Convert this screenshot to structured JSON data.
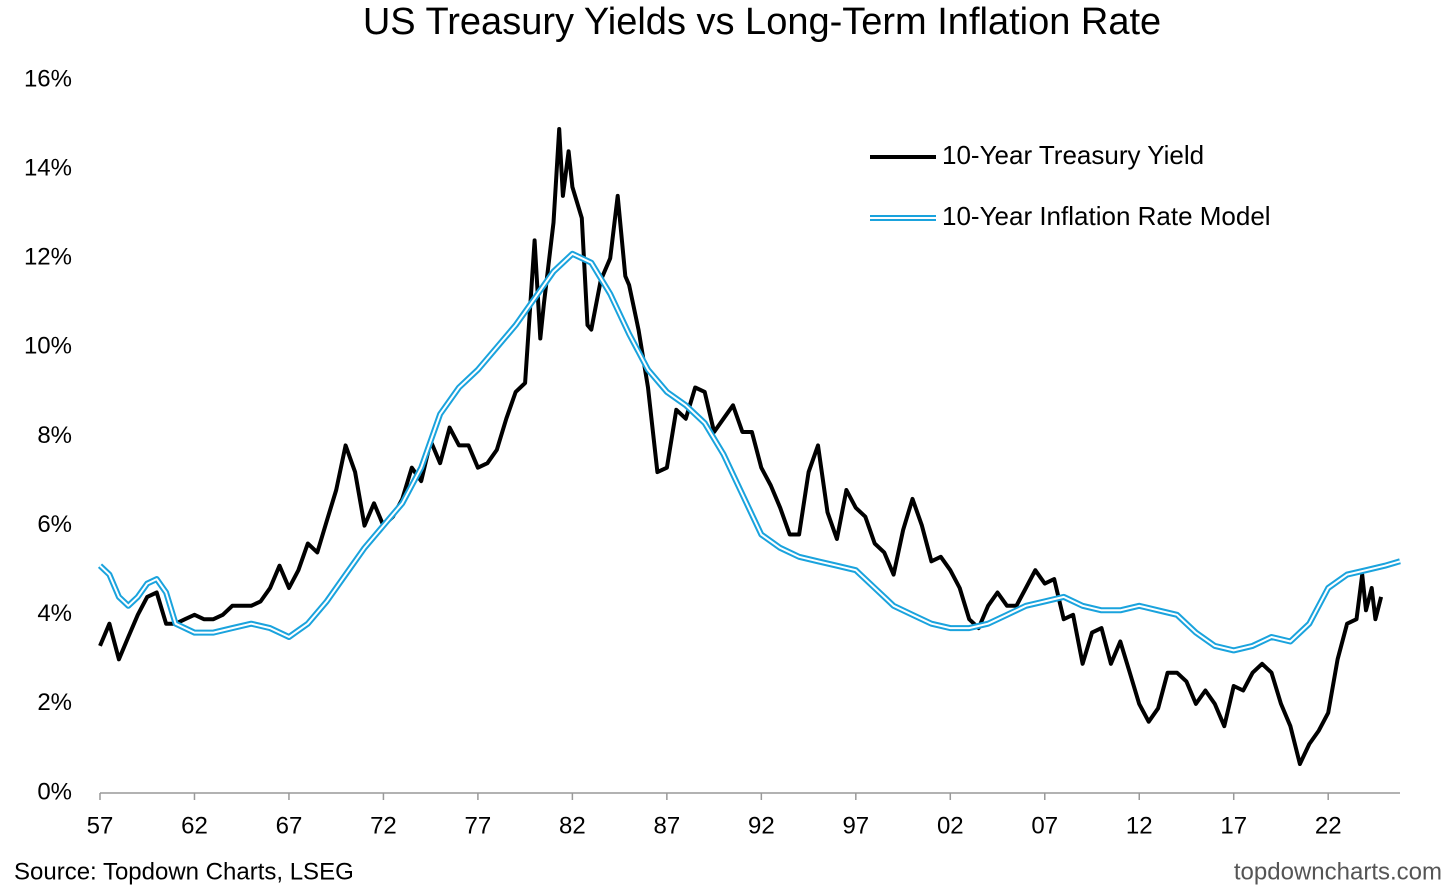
{
  "chart_data": {
    "type": "line",
    "title": "US Treasury Yields vs Long-Term Inflation Rate",
    "source": "Source: Topdown Charts, LSEG",
    "watermark": "topdowncharts.com",
    "legend": "upper right",
    "xlim": [
      1957,
      2025.8
    ],
    "xticks": [
      {
        "value": 1957,
        "label": "57"
      },
      {
        "value": 1962,
        "label": "62"
      },
      {
        "value": 1967,
        "label": "67"
      },
      {
        "value": 1972,
        "label": "72"
      },
      {
        "value": 1977,
        "label": "77"
      },
      {
        "value": 1982,
        "label": "82"
      },
      {
        "value": 1987,
        "label": "87"
      },
      {
        "value": 1992,
        "label": "92"
      },
      {
        "value": 1997,
        "label": "97"
      },
      {
        "value": 2002,
        "label": "02"
      },
      {
        "value": 2007,
        "label": "07"
      },
      {
        "value": 2012,
        "label": "12"
      },
      {
        "value": 2017,
        "label": "17"
      },
      {
        "value": 2022,
        "label": "22"
      }
    ],
    "ylim": [
      0,
      16
    ],
    "yticks": [
      {
        "value": 0,
        "label": "0%"
      },
      {
        "value": 2,
        "label": "2%"
      },
      {
        "value": 4,
        "label": "4%"
      },
      {
        "value": 6,
        "label": "6%"
      },
      {
        "value": 8,
        "label": "8%"
      },
      {
        "value": 10,
        "label": "10%"
      },
      {
        "value": 12,
        "label": "12%"
      },
      {
        "value": 14,
        "label": "14%"
      },
      {
        "value": 16,
        "label": "16%"
      }
    ],
    "series": [
      {
        "name": "10-Year Treasury Yield",
        "color": "#000000",
        "style": "single",
        "x": [
          1957,
          1957.5,
          1958,
          1958.5,
          1959,
          1959.5,
          1960,
          1960.5,
          1961,
          1961.5,
          1962,
          1962.5,
          1963,
          1963.5,
          1964,
          1964.5,
          1965,
          1965.5,
          1966,
          1966.5,
          1967,
          1967.5,
          1968,
          1968.5,
          1969,
          1969.5,
          1970,
          1970.5,
          1971,
          1971.5,
          1972,
          1972.5,
          1973,
          1973.5,
          1974,
          1974.5,
          1975,
          1975.5,
          1976,
          1976.5,
          1977,
          1977.5,
          1978,
          1978.5,
          1979,
          1979.5,
          1980,
          1980.3,
          1980.5,
          1981,
          1981.3,
          1981.5,
          1981.8,
          1982,
          1982.5,
          1982.8,
          1983,
          1983.5,
          1984,
          1984.4,
          1984.8,
          1985,
          1985.5,
          1986,
          1986.5,
          1987,
          1987.5,
          1988,
          1988.5,
          1989,
          1989.5,
          1990,
          1990.5,
          1991,
          1991.5,
          1992,
          1992.5,
          1993,
          1993.5,
          1994,
          1994.5,
          1995,
          1995.5,
          1996,
          1996.5,
          1997,
          1997.5,
          1998,
          1998.5,
          1999,
          1999.5,
          2000,
          2000.5,
          2001,
          2001.5,
          2002,
          2002.5,
          2003,
          2003.5,
          2004,
          2004.5,
          2005,
          2005.5,
          2006,
          2006.5,
          2007,
          2007.5,
          2008,
          2008.5,
          2009,
          2009.5,
          2010,
          2010.5,
          2011,
          2011.5,
          2012,
          2012.5,
          2013,
          2013.5,
          2014,
          2014.5,
          2015,
          2015.5,
          2016,
          2016.5,
          2017,
          2017.5,
          2018,
          2018.5,
          2019,
          2019.5,
          2020,
          2020.5,
          2021,
          2021.5,
          2022,
          2022.5,
          2023,
          2023.5,
          2023.8,
          2024,
          2024.3,
          2024.5,
          2024.8
        ],
        "values": [
          3.3,
          3.8,
          3.0,
          3.5,
          4.0,
          4.4,
          4.5,
          3.8,
          3.8,
          3.9,
          4.0,
          3.9,
          3.9,
          4.0,
          4.2,
          4.2,
          4.2,
          4.3,
          4.6,
          5.1,
          4.6,
          5.0,
          5.6,
          5.4,
          6.1,
          6.8,
          7.8,
          7.2,
          6.0,
          6.5,
          6.0,
          6.2,
          6.6,
          7.3,
          7.0,
          7.9,
          7.4,
          8.2,
          7.8,
          7.8,
          7.3,
          7.4,
          7.7,
          8.4,
          9.0,
          9.2,
          12.4,
          10.2,
          11.0,
          12.8,
          14.9,
          13.4,
          14.4,
          13.6,
          12.9,
          10.5,
          10.4,
          11.5,
          12.0,
          13.4,
          11.6,
          11.4,
          10.4,
          9.1,
          7.2,
          7.3,
          8.6,
          8.4,
          9.1,
          9.0,
          8.1,
          8.4,
          8.7,
          8.1,
          8.1,
          7.3,
          6.9,
          6.4,
          5.8,
          5.8,
          7.2,
          7.8,
          6.3,
          5.7,
          6.8,
          6.4,
          6.2,
          5.6,
          5.4,
          4.9,
          5.9,
          6.6,
          6.0,
          5.2,
          5.3,
          5.0,
          4.6,
          3.9,
          3.7,
          4.2,
          4.5,
          4.2,
          4.2,
          4.6,
          5.0,
          4.7,
          4.8,
          3.9,
          4.0,
          2.9,
          3.6,
          3.7,
          2.9,
          3.4,
          2.7,
          2.0,
          1.6,
          1.9,
          2.7,
          2.7,
          2.5,
          2.0,
          2.3,
          2.0,
          1.5,
          2.4,
          2.3,
          2.7,
          2.9,
          2.7,
          2.0,
          1.5,
          0.65,
          1.1,
          1.4,
          1.8,
          3.0,
          3.8,
          3.9,
          4.9,
          4.1,
          4.6,
          3.9,
          4.4
        ]
      },
      {
        "name": "10-Year Inflation Rate Model",
        "color": "#1aa3dd",
        "style": "double",
        "x": [
          1957,
          1957.5,
          1958,
          1958.5,
          1959,
          1959.5,
          1960,
          1960.5,
          1961,
          1962,
          1963,
          1964,
          1965,
          1966,
          1967,
          1968,
          1969,
          1970,
          1971,
          1972,
          1973,
          1974,
          1975,
          1976,
          1977,
          1978,
          1979,
          1980,
          1981,
          1982,
          1983,
          1984,
          1985,
          1986,
          1987,
          1988,
          1989,
          1990,
          1991,
          1992,
          1993,
          1994,
          1995,
          1996,
          1997,
          1998,
          1999,
          2000,
          2001,
          2002,
          2003,
          2004,
          2005,
          2006,
          2007,
          2008,
          2009,
          2010,
          2011,
          2012,
          2013,
          2014,
          2015,
          2016,
          2017,
          2018,
          2019,
          2020,
          2021,
          2022,
          2023,
          2024,
          2025,
          2025.8
        ],
        "values": [
          5.1,
          4.9,
          4.4,
          4.2,
          4.4,
          4.7,
          4.8,
          4.5,
          3.8,
          3.6,
          3.6,
          3.7,
          3.8,
          3.7,
          3.5,
          3.8,
          4.3,
          4.9,
          5.5,
          6.0,
          6.5,
          7.3,
          8.5,
          9.1,
          9.5,
          10.0,
          10.5,
          11.1,
          11.7,
          12.1,
          11.9,
          11.2,
          10.3,
          9.5,
          9.0,
          8.7,
          8.3,
          7.6,
          6.7,
          5.8,
          5.5,
          5.3,
          5.2,
          5.1,
          5.0,
          4.6,
          4.2,
          4.0,
          3.8,
          3.7,
          3.7,
          3.8,
          4.0,
          4.2,
          4.3,
          4.4,
          4.2,
          4.1,
          4.1,
          4.2,
          4.1,
          4.0,
          3.6,
          3.3,
          3.2,
          3.3,
          3.5,
          3.4,
          3.8,
          4.6,
          4.9,
          5.0,
          5.1,
          5.2
        ]
      }
    ]
  }
}
